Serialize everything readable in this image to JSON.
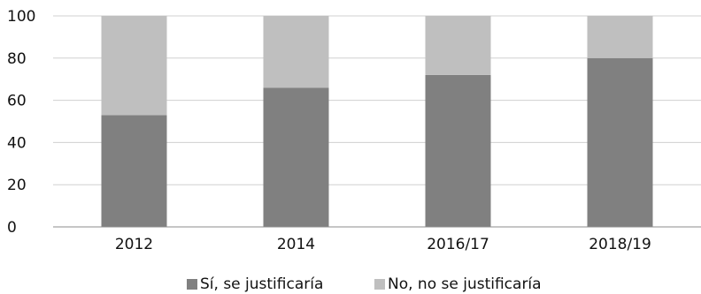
{
  "chart_data": {
    "type": "bar",
    "stacked": true,
    "categories": [
      "2012",
      "2014",
      "2016/17",
      "2018/19"
    ],
    "series": [
      {
        "name": "Sí, se justificaría",
        "values": [
          53,
          66,
          72,
          80
        ],
        "color": "#808080"
      },
      {
        "name": "No, no se justificaría",
        "values": [
          47,
          34,
          28,
          20
        ],
        "color": "#bfbfbf"
      }
    ],
    "y_ticks": [
      "0",
      "20",
      "40",
      "60",
      "80",
      "100"
    ],
    "ylim": [
      0,
      100
    ],
    "grid": true,
    "legend_position": "bottom"
  }
}
